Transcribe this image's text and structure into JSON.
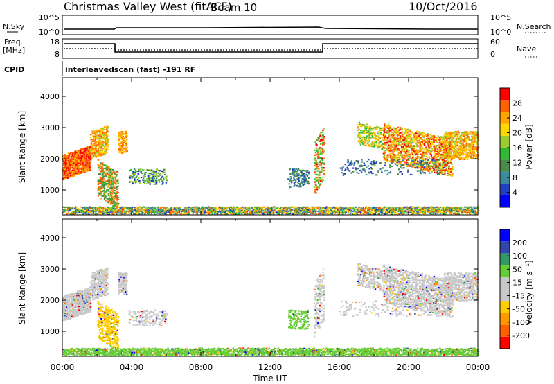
{
  "header": {
    "title": "Christmas Valley West (fitACF)",
    "beam": "Beam 10",
    "date": "10/Oct/2016"
  },
  "nsky_panel": {
    "left_label": "N.Sky",
    "right_label": "N.Search",
    "left_ticks": [
      "10^5",
      "10^0"
    ],
    "right_ticks": [
      "10^5",
      "10^0"
    ]
  },
  "freq_panel": {
    "left_label_1": "Freq.",
    "left_label_2": "[MHz]",
    "right_label": "Nave",
    "left_ticks": [
      "18",
      "8"
    ],
    "right_ticks": [
      "60",
      "0"
    ]
  },
  "cpid": {
    "label": "CPID",
    "text": "interleavedscan (fast) -191 RF"
  },
  "colors": {
    "power": [
      "#0000ff",
      "#2040c0",
      "#3d8a9a",
      "#4a8a4a",
      "#32b832",
      "#9acd32",
      "#ffd700",
      "#ffa500",
      "#ff6000",
      "#ff0000"
    ],
    "velocity": [
      "#ff0000",
      "#ff6000",
      "#ff9900",
      "#ffcc00",
      "#c8c8c8",
      "#c8c8c8",
      "#66cc33",
      "#339966",
      "#3344aa",
      "#0000ff"
    ]
  },
  "chart_data": [
    {
      "type": "heatmap",
      "panel": "power",
      "ylabel": "Slant Range [km]",
      "yticks": [
        1000,
        2000,
        3000,
        4000
      ],
      "ylim": [
        200,
        4600
      ],
      "colorbar_label": "Power [dB]",
      "colorbar_ticks": [
        4,
        8,
        12,
        16,
        20,
        24,
        28
      ],
      "colorbar_range": [
        0,
        32
      ]
    },
    {
      "type": "heatmap",
      "panel": "velocity",
      "ylabel": "Slant Range [km]",
      "yticks": [
        1000,
        2000,
        3000,
        4000
      ],
      "ylim": [
        200,
        4600
      ],
      "colorbar_label": "Velocity [m s⁻¹]",
      "colorbar_ticks": [
        "-200",
        "-100",
        "-50",
        "-15",
        "15",
        "50",
        "100",
        "200"
      ]
    },
    {
      "type": "line",
      "panel": "time_axis",
      "xlabel": "Time UT",
      "xticks": [
        "00:00",
        "04:00",
        "08:00",
        "12:00",
        "16:00",
        "20:00",
        "00:00"
      ],
      "xlim_hours": [
        0,
        24
      ]
    }
  ]
}
